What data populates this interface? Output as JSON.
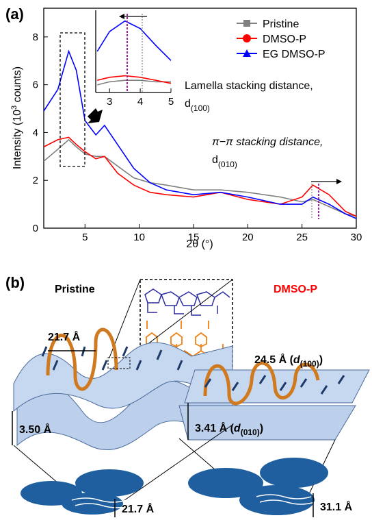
{
  "chart_data": [
    {
      "type": "line",
      "panel_label": "(a)",
      "xlabel": "2θ (°)",
      "ylabel": "Intensity (10",
      "ylabel_sup": "3",
      "ylabel_end": " counts)",
      "x": [
        1.2,
        2.5,
        3.5,
        4.2,
        5,
        6,
        6.8,
        8,
        9.5,
        11,
        12.5,
        15,
        17.5,
        20,
        23,
        25,
        26,
        27.5,
        29,
        30
      ],
      "series": [
        {
          "name": "Pristine",
          "color": "#808080",
          "marker": "square",
          "values": [
            2.8,
            3.3,
            3.7,
            3.4,
            3.1,
            3.0,
            3.0,
            2.6,
            2.1,
            1.9,
            1.8,
            1.6,
            1.6,
            1.5,
            1.3,
            1.1,
            1.2,
            0.9,
            0.6,
            0.5
          ]
        },
        {
          "name": "DMSO-P",
          "color": "#ff0000",
          "marker": "circle",
          "values": [
            3.4,
            3.7,
            3.8,
            3.5,
            3.2,
            2.9,
            3.0,
            2.3,
            1.8,
            1.5,
            1.4,
            1.3,
            1.5,
            1.2,
            1.0,
            1.3,
            1.8,
            1.4,
            0.7,
            0.5
          ]
        },
        {
          "name": "EG DMSO-P",
          "color": "#0000ff",
          "marker": "triangle",
          "values": [
            4.9,
            5.8,
            7.4,
            6.6,
            4.5,
            3.9,
            4.3,
            3.5,
            2.5,
            1.9,
            1.6,
            1.4,
            1.5,
            1.3,
            1.0,
            1.0,
            1.3,
            1.0,
            0.6,
            0.4
          ]
        }
      ],
      "xlim": [
        1.2,
        30
      ],
      "ylim": [
        0,
        9.2
      ],
      "xticks": [
        5,
        10,
        15,
        20,
        25,
        30
      ],
      "yticks": [
        0,
        2,
        4,
        6,
        8
      ],
      "legend": "upper right",
      "annotations": [
        {
          "text": "Lamella stacking distance,",
          "symbol": "d",
          "index": "(100)"
        },
        {
          "text": "π−π stacking distance,",
          "symbol": "d",
          "index": "(010)"
        }
      ]
    },
    {
      "type": "line",
      "x": [
        2.6,
        3,
        3.5,
        4,
        4.5,
        5
      ],
      "series": [
        {
          "color": "#808080",
          "values": [
            3.3,
            3.5,
            3.6,
            3.6,
            3.5,
            3.5
          ]
        },
        {
          "color": "#ff0000",
          "values": [
            3.6,
            3.8,
            3.9,
            3.8,
            3.6,
            3.4
          ]
        },
        {
          "color": "#0000ff",
          "values": [
            5.5,
            6.8,
            7.5,
            7.0,
            5.9,
            4.9
          ]
        }
      ],
      "xlim": [
        2.55,
        5
      ],
      "ylim": [
        2.8,
        8.2
      ],
      "xticks": [
        3,
        4,
        5
      ]
    }
  ],
  "diagram": {
    "panel_label": "(b)",
    "left": {
      "title": "Pristine",
      "spacing": "21.7 Å",
      "stacking": "3.50 Å",
      "domain": "21.7 Å"
    },
    "right": {
      "title": "DMSO-P",
      "spacing": "24.5 Å (",
      "spacing_symbol": "d",
      "spacing_index": "(100)",
      "spacing_close": ")",
      "stacking": "3.41 Å (",
      "stacking_symbol": "d",
      "stacking_index": "(010)",
      "stacking_close": ")",
      "domain": "31.1 Å"
    }
  }
}
